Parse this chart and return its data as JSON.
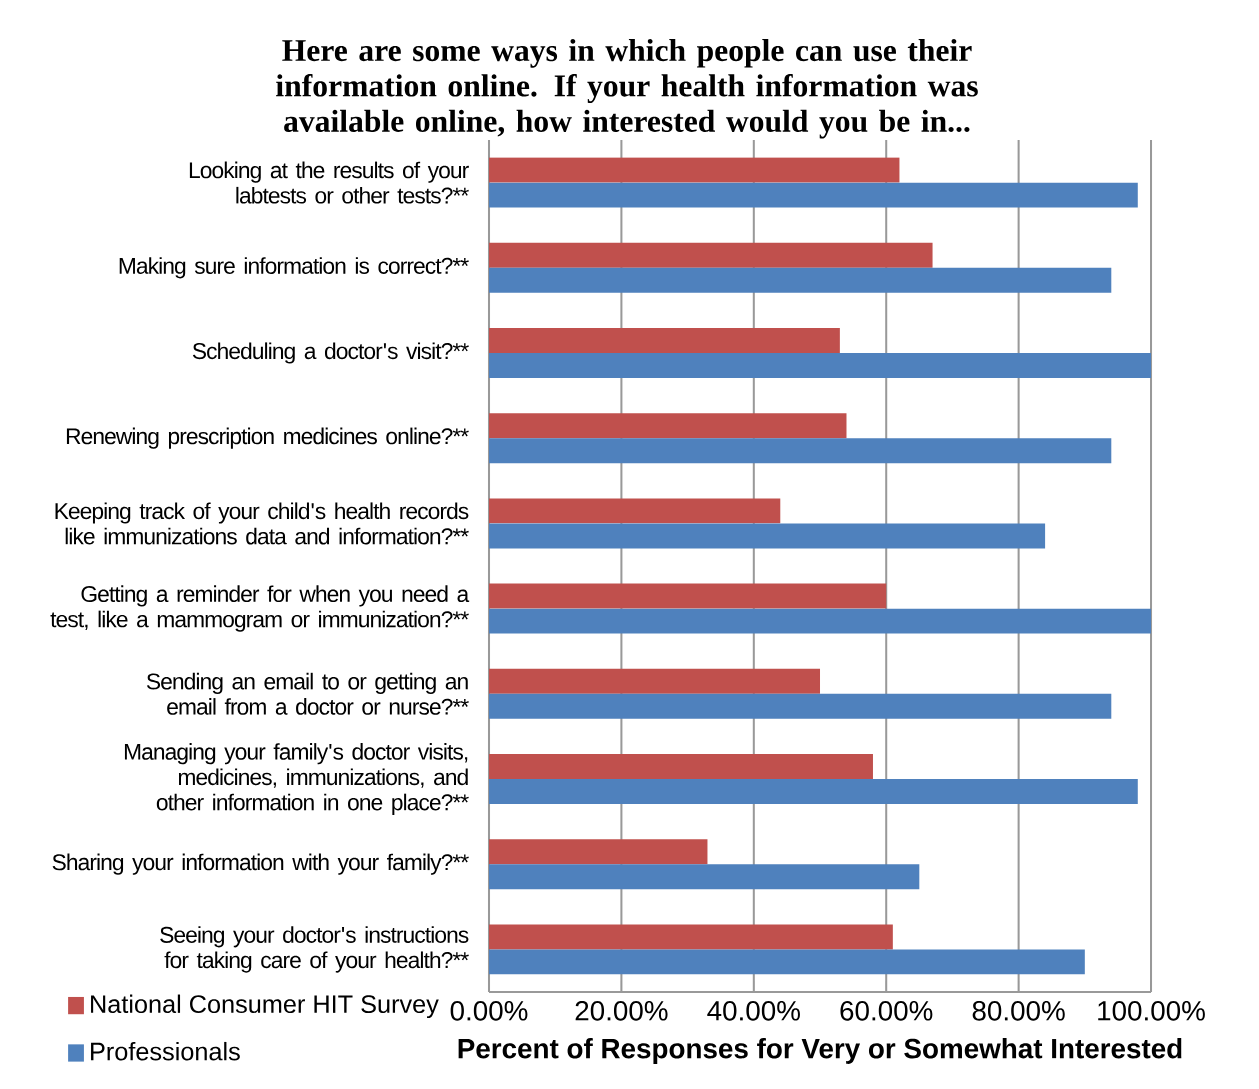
{
  "chart_data": {
    "type": "bar",
    "orientation": "horizontal",
    "title": "Here are some ways in which people can use their information online. If your health information was available online, how interested would you be in...",
    "xlabel": "Percent of Responses for Very or Somewhat Interested",
    "categories": [
      "Looking at the results of your labtests or other tests?**",
      "Making sure information is correct?**",
      "Scheduling a doctor's visit?**",
      "Renewing prescription medicines online?**",
      "Keeping track of your child's health records like immunizations data and information?**",
      "Getting a reminder for when you need a test, like a mammogram or immunization?**",
      "Sending an email to or getting an email from a doctor or nurse?**",
      "Managing your family's doctor visits, medicines, immunizations, and other information in one place?**",
      "Sharing your information with your family?**",
      "Seeing your doctor's instructions for taking care of your health?**"
    ],
    "series": [
      {
        "name": "National Consumer HIT Survey",
        "color": "#c0504d",
        "values": [
          62,
          67,
          53,
          54,
          44,
          60,
          50,
          58,
          33,
          61
        ]
      },
      {
        "name": "Professionals",
        "color": "#4f81bd",
        "values": [
          98,
          94,
          100,
          94,
          84,
          100,
          94,
          98,
          65,
          90
        ]
      }
    ],
    "xlim": [
      0,
      100
    ],
    "xticks": [
      {
        "value": 0,
        "label": "0.00%"
      },
      {
        "value": 20,
        "label": "20.00%"
      },
      {
        "value": 40,
        "label": "40.00%"
      },
      {
        "value": 60,
        "label": "60.00%"
      },
      {
        "value": 80,
        "label": "80.00%"
      },
      {
        "value": 100,
        "label": "100.00%"
      }
    ],
    "grid": "x",
    "legend": "bottom left"
  }
}
